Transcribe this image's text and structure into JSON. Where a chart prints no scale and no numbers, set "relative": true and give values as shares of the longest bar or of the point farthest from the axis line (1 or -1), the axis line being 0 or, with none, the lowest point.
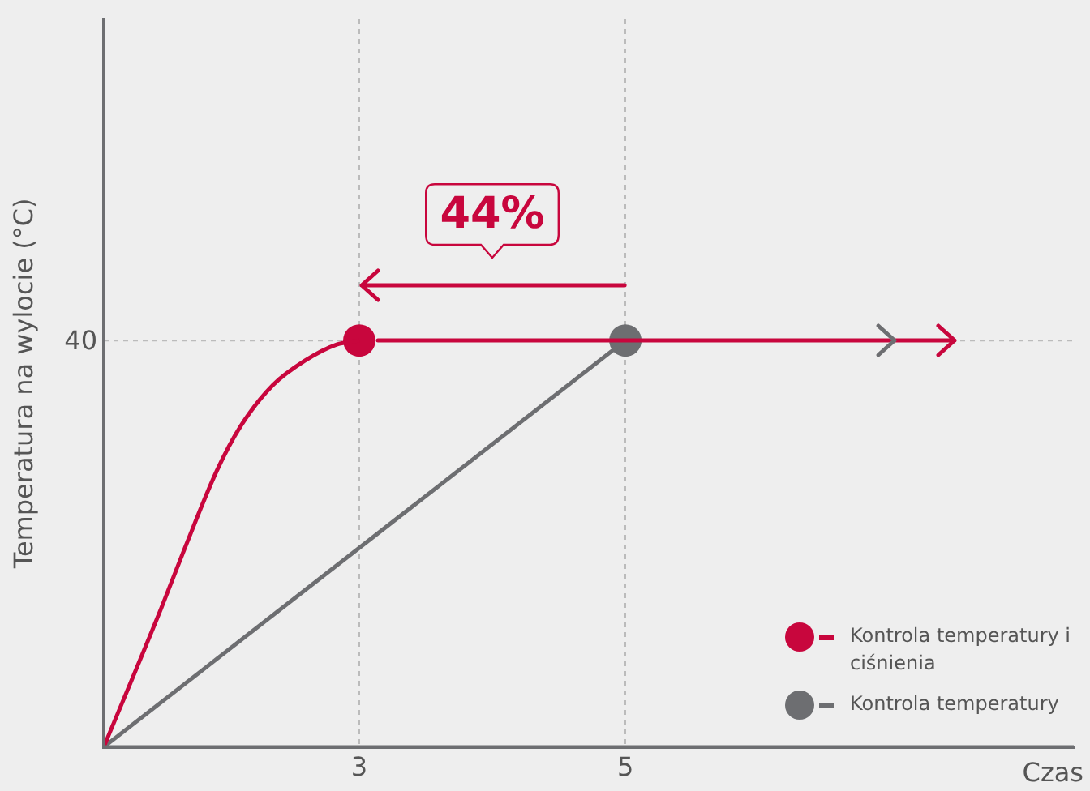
{
  "chart_data": {
    "type": "line",
    "xlabel": "Czas",
    "ylabel": "Temperatura na wylocie (°C)",
    "relative": true,
    "xlim": [
      1.08,
      8.37
    ],
    "xticks": [
      3,
      5
    ],
    "grid": "x",
    "legend": "bottom right",
    "annotations": [
      "44%",
      "40"
    ],
    "series": [
      {
        "name": "Kontrola temperatury i ciśnienia",
        "color": "#c8063d",
        "x": [
          1.08,
          1.51,
          1.69,
          1.93,
          2.11,
          2.35,
          2.59,
          2.83,
          3
        ],
        "values": [
          0,
          0.34,
          0.49,
          0.68,
          0.79,
          0.89,
          0.95,
          0.99,
          1
        ]
      },
      {
        "name": "Kontrola temperatury",
        "color": "#6d6e71",
        "x": [
          1.08,
          5
        ],
        "values": [
          0,
          1
        ]
      },
      {
        "type": "scatter",
        "x": [
          3,
          5
        ],
        "values": [
          1,
          1
        ],
        "colors": [
          "#c8063d",
          "#6d6e71"
        ],
        "marker": "circle"
      }
    ]
  }
}
